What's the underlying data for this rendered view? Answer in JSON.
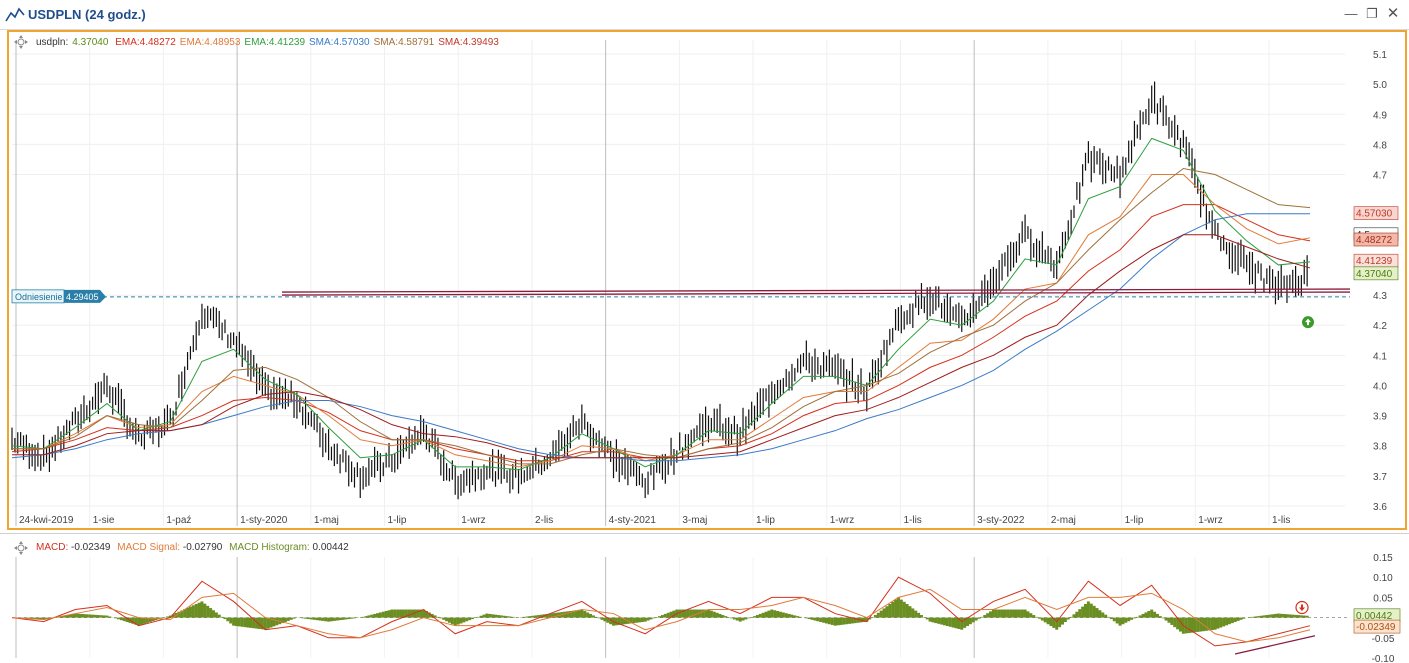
{
  "window": {
    "title": "USDPLN (24 godz.)",
    "minimize_icon": "minimize-icon",
    "maximize_icon": "restore-icon",
    "close_icon": "close-icon"
  },
  "legend_main": {
    "symbol_label": "usdpln:",
    "symbol_value": "4.37040",
    "indicators": [
      {
        "label": "EMA:",
        "value": "4.48272",
        "color": "#d4301c"
      },
      {
        "label": "EMA:",
        "value": "4.48953",
        "color": "#e07b39"
      },
      {
        "label": "EMA:",
        "value": "4.41239",
        "color": "#2e9e3e"
      },
      {
        "label": "SMA:",
        "value": "4.57030",
        "color": "#3a7bc8"
      },
      {
        "label": "SMA:",
        "value": "4.58791",
        "color": "#a0703a"
      },
      {
        "label": "SMA:",
        "value": "4.39493",
        "color": "#c0392b"
      }
    ],
    "symbol_color": "#5a8a1a"
  },
  "legend_macd": {
    "macd_label": "MACD:",
    "macd_value": "-0.02349",
    "signal_label": "MACD Signal:",
    "signal_value": "-0.02790",
    "hist_label": "MACD Histogram:",
    "hist_value": "0.00442",
    "macd_color": "#d4301c",
    "signal_color": "#e07b39",
    "hist_color": "#6b8e23"
  },
  "reference": {
    "label": "Odniesienie",
    "value": "4.29405"
  },
  "price_tags": [
    {
      "value": "4.5",
      "text": "4.5",
      "bg": "#ffffff",
      "fg": "#333333"
    },
    {
      "value": "4.57030",
      "text": "4.57030",
      "bg": "#f9d5cf",
      "fg": "#c0392b"
    },
    {
      "value": "4.48272",
      "text": "4.48272",
      "bg": "#f4b8a8",
      "fg": "#a0301c"
    },
    {
      "value": "4.41239",
      "text": "4.41239",
      "bg": "#f9e0d8",
      "fg": "#c0392b"
    },
    {
      "value": "4.37040",
      "text": "4.37040",
      "bg": "#e4f0c8",
      "fg": "#4a7a10"
    }
  ],
  "macd_tags": [
    {
      "value": "0.00442",
      "text": "0.00442",
      "bg": "#e4f0c8",
      "fg": "#4a7a10"
    },
    {
      "value": "-0.02349",
      "text": "-0.02349",
      "bg": "#fbe3cf",
      "fg": "#b05010"
    }
  ],
  "chart_data": [
    {
      "type": "line",
      "title": "USDPLN (24 godz.)",
      "subtype": "candlestick-daily",
      "ylim": [
        3.6,
        5.1
      ],
      "yticks": [
        "5.1",
        "5.0",
        "4.9",
        "4.8",
        "4.7",
        "4.3",
        "4.2",
        "4.1",
        "4.0",
        "3.9",
        "3.8",
        "3.7",
        "3.6"
      ],
      "xticks": [
        "24-kwi-2019",
        "1-sie",
        "1-paź",
        "1-sty-2020",
        "1-maj",
        "1-lip",
        "1-wrz",
        "2-lis",
        "4-sty-2021",
        "3-maj",
        "1-lip",
        "1-wrz",
        "1-lis",
        "3-sty-2022",
        "2-maj",
        "1-lip",
        "1-wrz",
        "1-lis"
      ],
      "x": [
        "2019-04",
        "2019-06",
        "2019-08",
        "2019-10",
        "2019-12",
        "2020-02",
        "2020-03",
        "2020-04",
        "2020-05",
        "2020-06",
        "2020-07",
        "2020-08",
        "2020-09",
        "2020-10",
        "2020-11",
        "2020-12",
        "2021-01",
        "2021-02",
        "2021-03",
        "2021-04",
        "2021-05",
        "2021-06",
        "2021-07",
        "2021-08",
        "2021-09",
        "2021-10",
        "2021-11",
        "2021-12",
        "2022-01",
        "2022-02",
        "2022-03",
        "2022-04",
        "2022-05",
        "2022-06",
        "2022-07",
        "2022-08",
        "2022-09",
        "2022-10",
        "2022-11",
        "2022-12",
        "2023-01",
        "2023-02"
      ],
      "series": [
        {
          "name": "usdpln",
          "values": [
            3.82,
            3.76,
            3.88,
            4.0,
            3.82,
            3.88,
            4.25,
            4.15,
            3.98,
            3.95,
            3.8,
            3.7,
            3.75,
            3.85,
            3.68,
            3.72,
            3.7,
            3.76,
            3.88,
            3.76,
            3.68,
            3.78,
            3.88,
            3.84,
            3.98,
            4.08,
            4.05,
            3.98,
            4.22,
            4.3,
            4.2,
            4.35,
            4.5,
            4.4,
            4.75,
            4.7,
            4.95,
            4.8,
            4.5,
            4.4,
            4.32,
            4.37
          ]
        },
        {
          "name": "EMA",
          "values": [
            3.78,
            3.79,
            3.82,
            3.86,
            3.85,
            3.86,
            3.9,
            3.95,
            3.96,
            3.95,
            3.91,
            3.85,
            3.82,
            3.82,
            3.79,
            3.77,
            3.75,
            3.75,
            3.78,
            3.78,
            3.76,
            3.76,
            3.79,
            3.8,
            3.84,
            3.9,
            3.94,
            3.95,
            4.0,
            4.06,
            4.1,
            4.16,
            4.23,
            4.28,
            4.38,
            4.45,
            4.56,
            4.6,
            4.6,
            4.55,
            4.5,
            4.48
          ]
        },
        {
          "name": "EMA",
          "values": [
            3.79,
            3.79,
            3.84,
            3.9,
            3.86,
            3.87,
            3.98,
            4.03,
            4.0,
            3.97,
            3.9,
            3.82,
            3.8,
            3.82,
            3.77,
            3.75,
            3.73,
            3.75,
            3.8,
            3.79,
            3.75,
            3.77,
            3.82,
            3.82,
            3.89,
            3.96,
            3.98,
            3.98,
            4.06,
            4.14,
            4.15,
            4.22,
            4.32,
            4.34,
            4.5,
            4.56,
            4.7,
            4.7,
            4.6,
            4.52,
            4.47,
            4.49
          ]
        },
        {
          "name": "EMA",
          "values": [
            3.8,
            3.79,
            3.86,
            3.94,
            3.85,
            3.88,
            4.08,
            4.12,
            4.02,
            3.97,
            3.86,
            3.76,
            3.77,
            3.82,
            3.73,
            3.73,
            3.72,
            3.76,
            3.84,
            3.79,
            3.73,
            3.77,
            3.85,
            3.84,
            3.94,
            4.03,
            4.03,
            4.0,
            4.12,
            4.22,
            4.2,
            4.28,
            4.42,
            4.4,
            4.62,
            4.66,
            4.82,
            4.78,
            4.58,
            4.48,
            4.4,
            4.41
          ]
        },
        {
          "name": "SMA",
          "values": [
            3.76,
            3.77,
            3.79,
            3.82,
            3.84,
            3.85,
            3.87,
            3.9,
            3.93,
            3.95,
            3.95,
            3.93,
            3.9,
            3.88,
            3.85,
            3.82,
            3.79,
            3.77,
            3.76,
            3.76,
            3.75,
            3.75,
            3.76,
            3.77,
            3.79,
            3.82,
            3.85,
            3.89,
            3.92,
            3.96,
            4.0,
            4.05,
            4.12,
            4.18,
            4.25,
            4.32,
            4.42,
            4.5,
            4.55,
            4.57,
            4.57,
            4.57
          ]
        },
        {
          "name": "SMA",
          "values": [
            3.79,
            3.79,
            3.83,
            3.9,
            3.87,
            3.86,
            3.95,
            4.05,
            4.06,
            4.02,
            3.96,
            3.88,
            3.82,
            3.82,
            3.8,
            3.77,
            3.74,
            3.74,
            3.77,
            3.79,
            3.77,
            3.76,
            3.79,
            3.81,
            3.86,
            3.93,
            3.98,
            4.0,
            4.04,
            4.11,
            4.16,
            4.2,
            4.28,
            4.34,
            4.45,
            4.55,
            4.64,
            4.72,
            4.7,
            4.65,
            4.6,
            4.59
          ]
        },
        {
          "name": "SMA",
          "values": [
            3.77,
            3.77,
            3.8,
            3.84,
            3.85,
            3.85,
            3.87,
            3.93,
            3.97,
            3.98,
            3.96,
            3.92,
            3.87,
            3.84,
            3.83,
            3.81,
            3.78,
            3.76,
            3.76,
            3.76,
            3.76,
            3.76,
            3.77,
            3.78,
            3.82,
            3.86,
            3.9,
            3.92,
            3.96,
            4.01,
            4.06,
            4.1,
            4.16,
            4.2,
            4.3,
            4.38,
            4.45,
            4.5,
            4.5,
            4.46,
            4.42,
            4.39
          ]
        }
      ]
    },
    {
      "type": "line",
      "ylim": [
        -0.1,
        0.15
      ],
      "yticks": [
        "0.15",
        "0.10",
        "0.05",
        "-0.05",
        "-0.10"
      ],
      "series": [
        {
          "name": "MACD",
          "values": [
            0.0,
            -0.01,
            0.02,
            0.03,
            -0.02,
            0.0,
            0.09,
            0.04,
            -0.03,
            -0.02,
            -0.05,
            -0.05,
            -0.01,
            0.02,
            -0.04,
            -0.01,
            -0.02,
            0.01,
            0.04,
            -0.01,
            -0.04,
            0.01,
            0.04,
            0.01,
            0.05,
            0.05,
            0.01,
            -0.01,
            0.1,
            0.06,
            -0.01,
            0.04,
            0.07,
            -0.01,
            0.09,
            0.03,
            0.08,
            -0.02,
            -0.07,
            -0.06,
            -0.04,
            -0.02
          ]
        },
        {
          "name": "MACD Signal",
          "values": [
            0.0,
            -0.005,
            0.01,
            0.025,
            0.0,
            -0.005,
            0.05,
            0.06,
            0.0,
            -0.02,
            -0.04,
            -0.05,
            -0.03,
            0.0,
            -0.02,
            -0.02,
            -0.02,
            0.0,
            0.02,
            0.01,
            -0.03,
            -0.01,
            0.02,
            0.02,
            0.03,
            0.05,
            0.03,
            0.0,
            0.05,
            0.07,
            0.02,
            0.02,
            0.05,
            0.02,
            0.05,
            0.05,
            0.06,
            0.02,
            -0.04,
            -0.06,
            -0.05,
            -0.03
          ]
        },
        {
          "name": "MACD Histogram",
          "values": [
            0.0,
            -0.005,
            0.01,
            0.005,
            -0.02,
            0.005,
            0.04,
            -0.02,
            -0.03,
            0.0,
            -0.01,
            0.0,
            0.02,
            0.02,
            -0.02,
            0.01,
            0.0,
            0.01,
            0.02,
            -0.02,
            -0.01,
            0.02,
            0.02,
            -0.01,
            0.02,
            0.0,
            -0.02,
            -0.01,
            0.05,
            -0.01,
            -0.03,
            0.02,
            0.02,
            -0.03,
            0.04,
            -0.02,
            0.02,
            -0.04,
            -0.03,
            0.0,
            0.01,
            0.004
          ]
        }
      ]
    }
  ]
}
